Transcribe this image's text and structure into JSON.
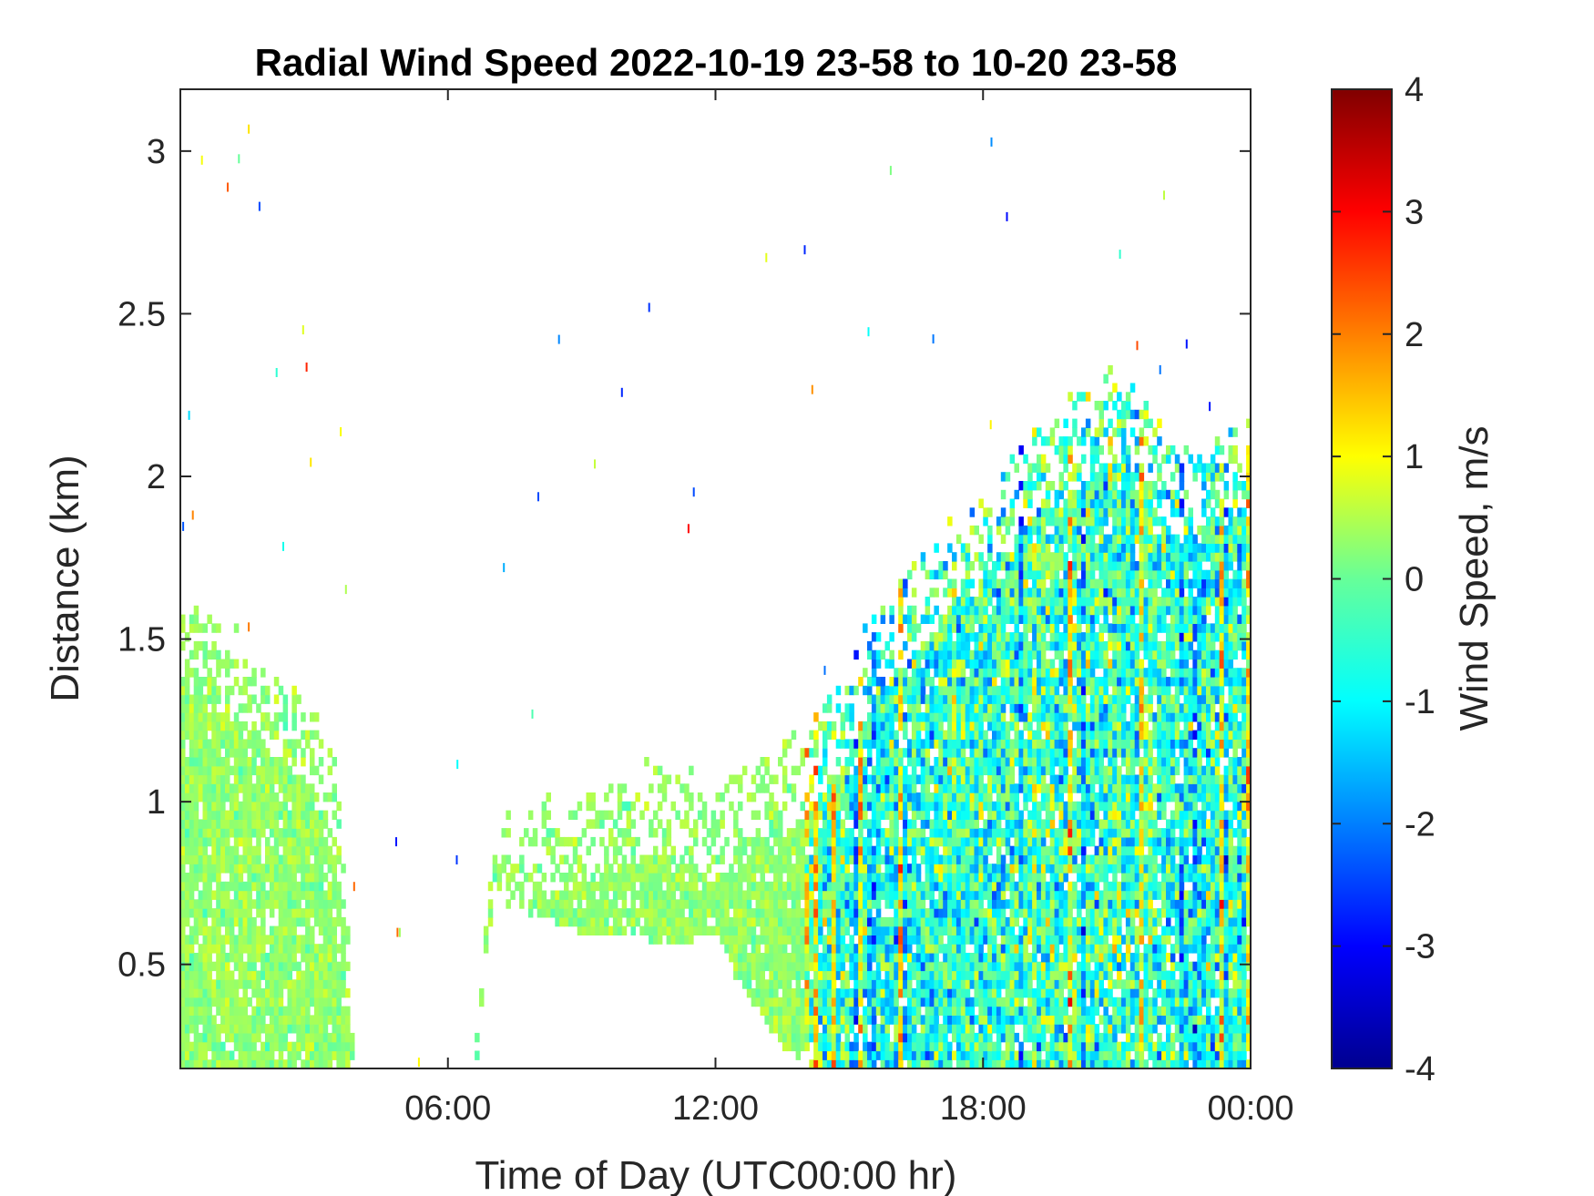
{
  "chart_data": {
    "type": "heatmap",
    "title": "Radial Wind Speed 2022-10-19 23-58 to 10-20 23-58",
    "xlabel": "Time of Day (UTC00:00 hr)",
    "ylabel": "Distance (km)",
    "x_unit": "hours",
    "xlim": [
      0,
      24
    ],
    "x_ticks": [
      6,
      12,
      18,
      24
    ],
    "x_tick_labels": [
      "06:00",
      "12:00",
      "18:00",
      "00:00"
    ],
    "ylim": [
      0.18,
      3.19
    ],
    "y_ticks": [
      0.5,
      1,
      1.5,
      2,
      2.5,
      3
    ],
    "y_tick_labels": [
      "0.5",
      "1",
      "1.5",
      "2",
      "2.5",
      "3"
    ],
    "colorbar": {
      "label": "Wind Speed, m/s",
      "colormap": "jet",
      "range": [
        -4,
        4
      ],
      "ticks": [
        4,
        3,
        2,
        1,
        0,
        -1,
        -2,
        -3,
        -4
      ],
      "tick_labels": [
        "4",
        "3",
        "2",
        "1",
        "0",
        "-1",
        "-2",
        "-3",
        "-4"
      ]
    },
    "grid": false,
    "data_top_profile": {
      "hours": [
        0.0,
        0.5,
        1.0,
        1.5,
        2.0,
        2.5,
        3.0,
        3.2,
        3.6,
        4.0,
        6.5,
        7.0,
        8.0,
        9.0,
        10.0,
        11.0,
        11.5,
        12.0,
        12.5,
        13.0,
        13.5,
        14.0,
        14.5,
        15.0,
        15.5,
        16.0,
        16.5,
        17.0,
        17.5,
        18.0,
        18.5,
        19.0,
        19.5,
        20.0,
        20.5,
        21.0,
        21.5,
        22.0,
        22.5,
        23.0,
        23.5,
        24.0
      ],
      "top_km": [
        1.55,
        1.6,
        1.5,
        1.45,
        1.4,
        1.35,
        1.3,
        1.2,
        1.0,
        0.0,
        0.0,
        0.88,
        0.95,
        1.0,
        1.05,
        1.1,
        1.05,
        1.0,
        1.05,
        1.1,
        1.15,
        1.2,
        1.3,
        1.4,
        1.55,
        1.65,
        1.7,
        1.8,
        1.85,
        1.95,
        2.0,
        2.1,
        2.15,
        2.2,
        2.25,
        2.3,
        2.25,
        2.1,
        2.05,
        2.1,
        2.15,
        2.1
      ]
    },
    "data_bottom_profile": {
      "hours": [
        0.0,
        3.6,
        4.0,
        6.5,
        7.0,
        8.0,
        9.0,
        10.0,
        11.0,
        12.0,
        12.5,
        13.0,
        13.5,
        14.0,
        14.3,
        24.0
      ],
      "bottom_km": [
        0.18,
        0.18,
        0.0,
        0.0,
        0.7,
        0.65,
        0.6,
        0.6,
        0.55,
        0.6,
        0.45,
        0.35,
        0.25,
        0.2,
        0.18,
        0.18
      ]
    },
    "value_character": {
      "early_hours_0_to_3.5": "mostly 0 to 0.5 m/s (green)",
      "midday_7_to_14": "about 0 to 0.5 m/s (green/yellow)",
      "afternoon_14_to_24": "-2 to 3 m/s, mostly -1 to 0.5 (cyan/green) with streaks of positive (red) and negative (blue) values"
    },
    "noise_cell_density": "sparse isolated cells above the echo region"
  }
}
